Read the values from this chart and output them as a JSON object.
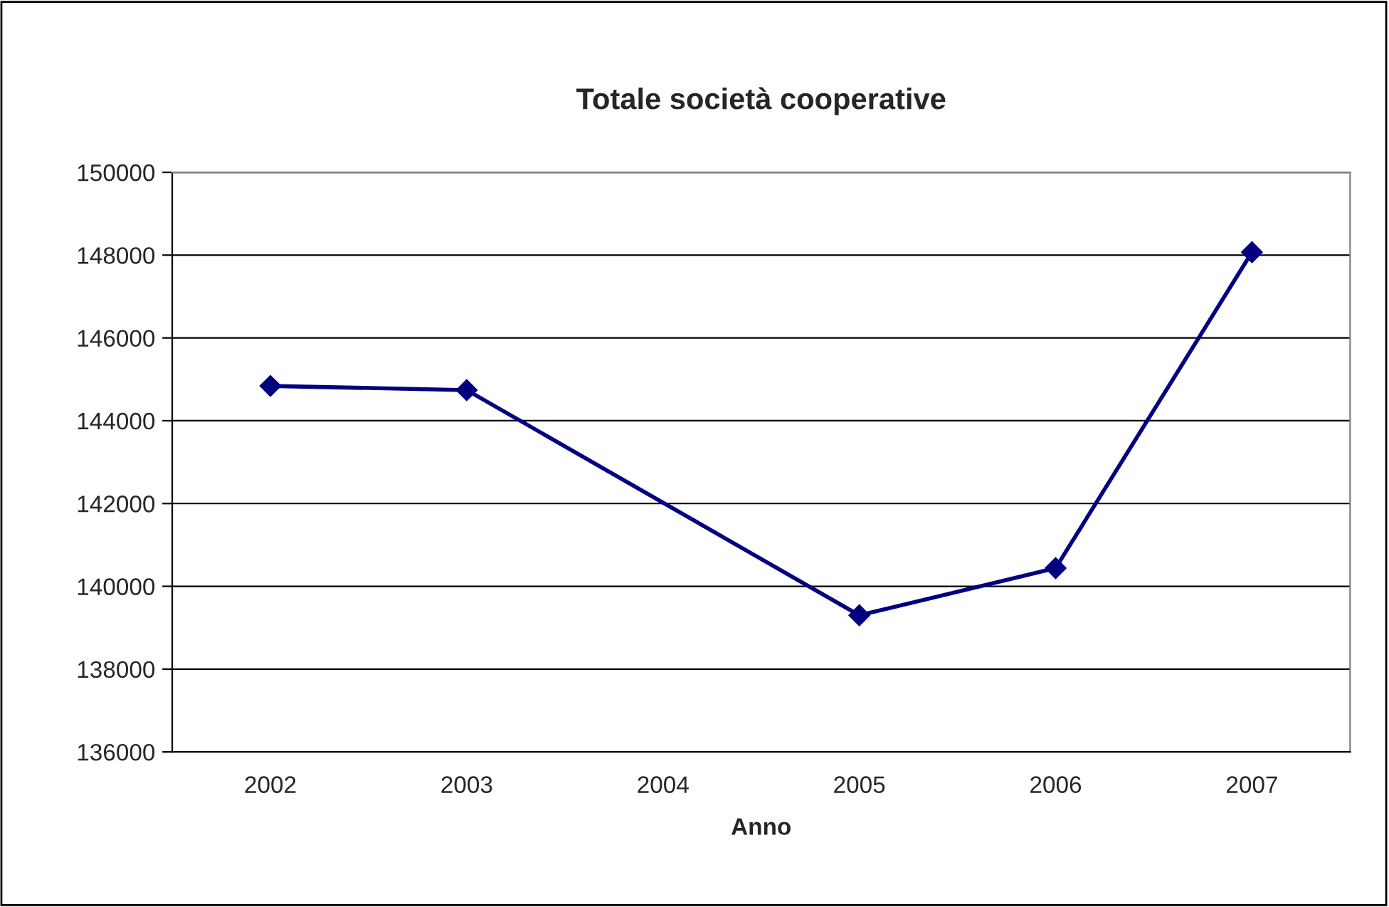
{
  "chart_data": {
    "type": "line",
    "title": "Totale società cooperative",
    "xlabel": "Anno",
    "categories": [
      "2002",
      "2003",
      "2004",
      "2005",
      "2006",
      "2007"
    ],
    "series": [
      {
        "color": "#000080",
        "values": [
          144840,
          144740,
          null,
          139300,
          140440,
          148070
        ]
      }
    ],
    "ylim": [
      136000,
      150000
    ],
    "yticks": [
      136000,
      138000,
      140000,
      142000,
      144000,
      146000,
      148000,
      150000
    ],
    "grid": "y",
    "marker": "diamond",
    "line_style": "solid",
    "legend": false
  }
}
